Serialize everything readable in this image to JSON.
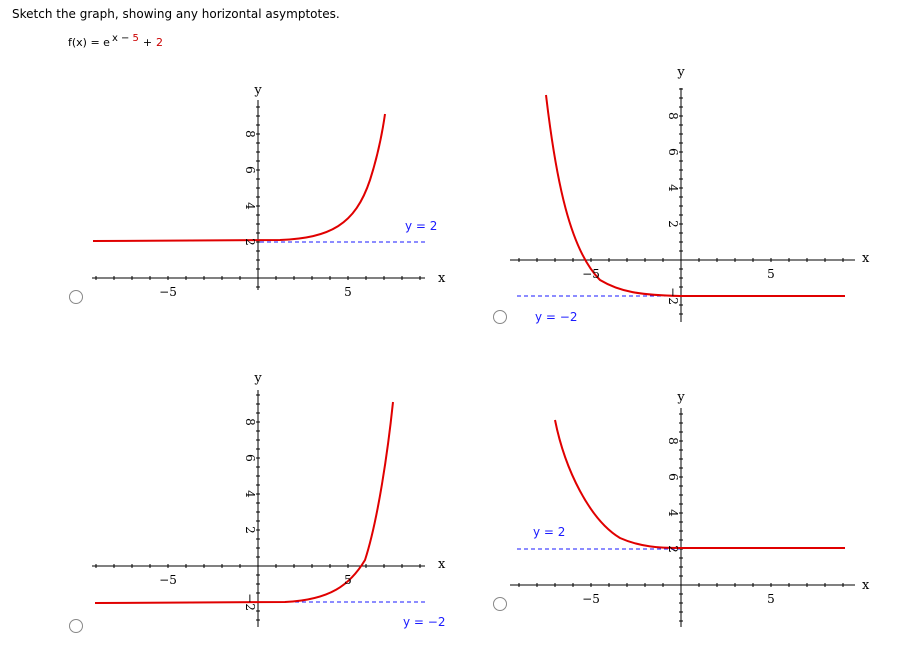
{
  "question": "Sketch the graph, showing any horizontal asymptotes.",
  "function": {
    "name": "f(x) = e",
    "exponent": "x −",
    "exponent_constant": "5",
    "operator": "+",
    "constant": "2"
  },
  "options": [
    {
      "x_label": "x",
      "y_label": "y",
      "x_tick_labels": [
        "−5",
        "5"
      ],
      "y_tick_labels": [
        "2",
        "4",
        "6",
        "8"
      ],
      "asymptote_label": "y = 2"
    },
    {
      "x_label": "x",
      "y_label": "y",
      "x_tick_labels": [
        "−5",
        "5"
      ],
      "y_tick_labels": [
        "2",
        "4",
        "6",
        "8",
        "−2"
      ],
      "asymptote_label": "y = −2"
    },
    {
      "x_label": "x",
      "y_label": "y",
      "x_tick_labels": [
        "−5",
        "5"
      ],
      "y_tick_labels": [
        "2",
        "4",
        "6",
        "8",
        "−2"
      ],
      "asymptote_label": "y = −2"
    },
    {
      "x_label": "x",
      "y_label": "y",
      "x_tick_labels": [
        "−5",
        "5"
      ],
      "y_tick_labels": [
        "2",
        "4",
        "6",
        "8"
      ],
      "asymptote_label": "y = 2"
    }
  ]
}
